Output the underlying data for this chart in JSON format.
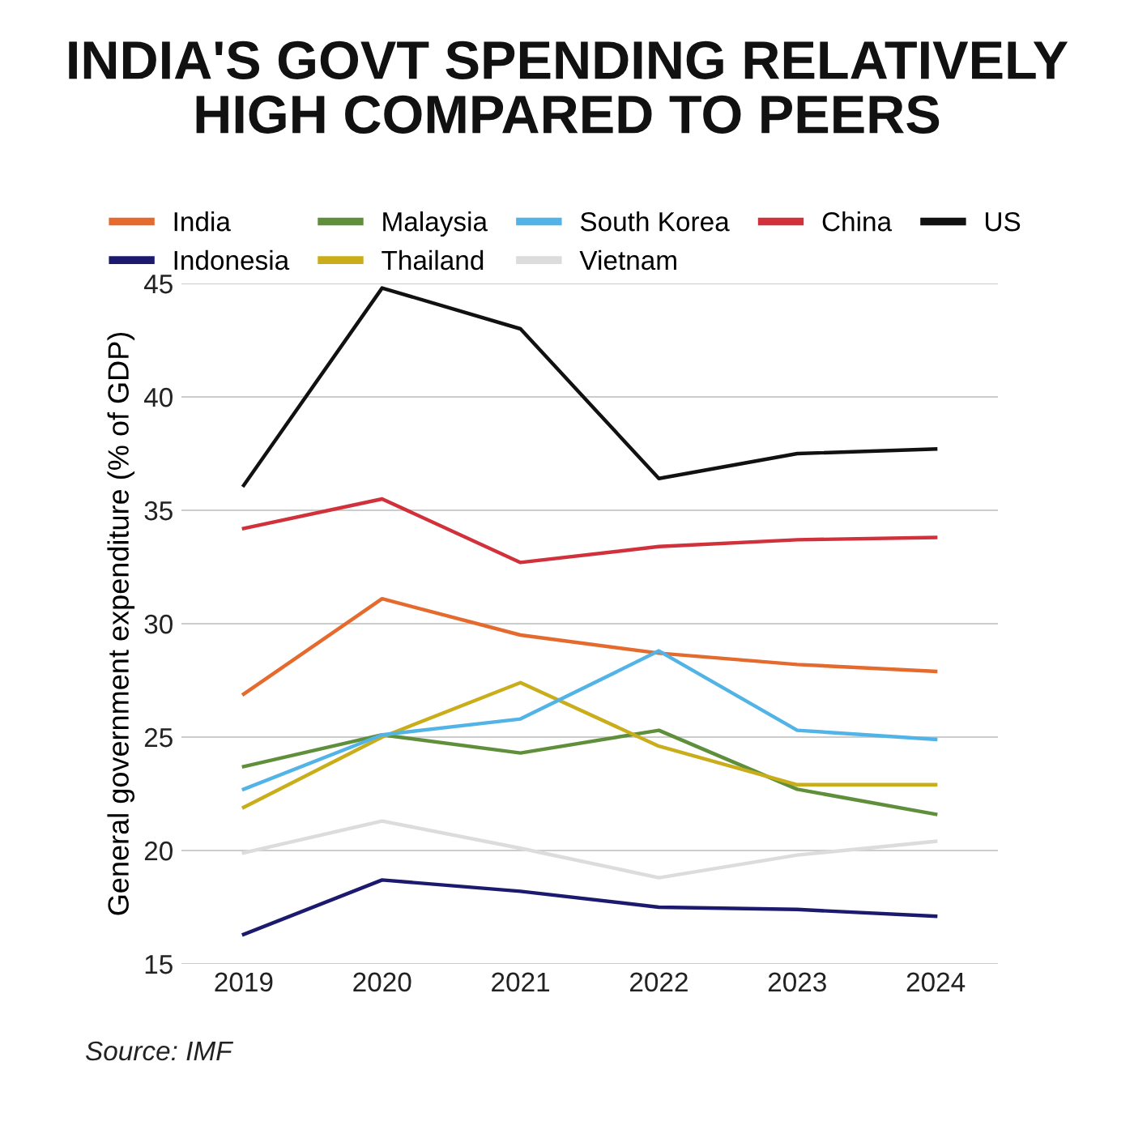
{
  "chart_data": {
    "type": "line",
    "title": "INDIA'S GOVT SPENDING RELATIVELY\nHIGH COMPARED TO PEERS",
    "ylabel": "General government expenditure (% of GDP)",
    "categories": [
      "2019",
      "2020",
      "2021",
      "2022",
      "2023",
      "2024"
    ],
    "series": [
      {
        "name": "India",
        "color": "#e46a2e",
        "values": [
          26.9,
          31.1,
          29.5,
          28.7,
          28.2,
          27.9
        ]
      },
      {
        "name": "Indonesia",
        "color": "#1c1a6e",
        "values": [
          16.3,
          18.7,
          18.2,
          17.5,
          17.4,
          17.1
        ]
      },
      {
        "name": "Malaysia",
        "color": "#5f8f3a",
        "values": [
          23.7,
          25.1,
          24.3,
          25.3,
          22.7,
          21.6
        ]
      },
      {
        "name": "Thailand",
        "color": "#c9ad1a",
        "values": [
          21.9,
          25.0,
          27.4,
          24.6,
          22.9,
          22.9
        ]
      },
      {
        "name": "South Korea",
        "color": "#52b4e6",
        "values": [
          22.7,
          25.1,
          25.8,
          28.8,
          25.3,
          24.9
        ]
      },
      {
        "name": "Vietnam",
        "color": "#dcdcdc",
        "values": [
          19.9,
          21.3,
          20.1,
          18.8,
          19.8,
          20.4
        ]
      },
      {
        "name": "China",
        "color": "#d0313a",
        "values": [
          34.2,
          35.5,
          32.7,
          33.4,
          33.7,
          33.8
        ]
      },
      {
        "name": "US",
        "color": "#111111",
        "values": [
          36.1,
          44.8,
          43.0,
          36.4,
          37.5,
          37.7
        ]
      }
    ],
    "ylim": [
      15,
      45
    ],
    "yticks": [
      15,
      20,
      25,
      30,
      35,
      40,
      45
    ],
    "grid": "y",
    "legend": "top",
    "marker": "none",
    "line_style": "solid",
    "annotations": [
      "Source: IMF"
    ]
  }
}
